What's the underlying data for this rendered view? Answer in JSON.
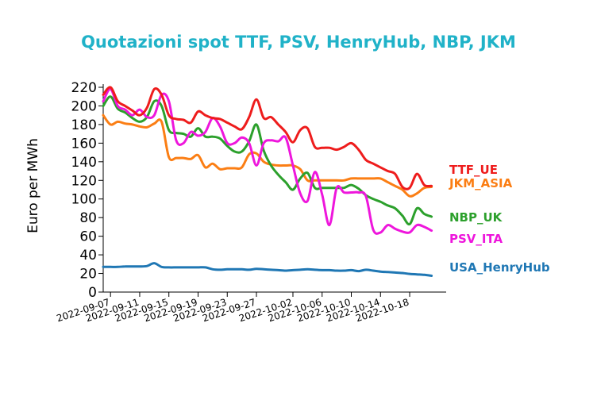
{
  "chart_data": {
    "type": "line",
    "title": "Quotazioni spot TTF, PSV, HenryHub, NBP, JKM",
    "title_color": "#20b2c8",
    "xlabel": "",
    "ylabel": "Euro per MWh",
    "ylim": [
      0,
      220
    ],
    "yticks": [
      0,
      20,
      40,
      60,
      80,
      100,
      120,
      140,
      160,
      180,
      200,
      220
    ],
    "x_range": [
      "2022-09-06",
      "2022-10-23"
    ],
    "xticks": [
      "2022-09-07",
      "2022-09-11",
      "2022-09-15",
      "2022-09-19",
      "2022-09-23",
      "2022-09-27",
      "2022-10-02",
      "2022-10-06",
      "2022-10-10",
      "2022-10-14",
      "2022-10-18"
    ],
    "grid": false,
    "legend": "inline labels at right end of lines",
    "series": [
      {
        "name": "TTF_UE",
        "color": "#ee1c1c",
        "x": [
          "2022-09-06",
          "2022-09-07",
          "2022-09-08",
          "2022-09-09",
          "2022-09-10",
          "2022-09-11",
          "2022-09-12",
          "2022-09-13",
          "2022-09-14",
          "2022-09-15",
          "2022-09-16",
          "2022-09-17",
          "2022-09-18",
          "2022-09-19",
          "2022-09-20",
          "2022-09-21",
          "2022-09-22",
          "2022-09-23",
          "2022-09-24",
          "2022-09-25",
          "2022-09-26",
          "2022-09-27",
          "2022-09-28",
          "2022-09-29",
          "2022-09-30",
          "2022-10-01",
          "2022-10-02",
          "2022-10-03",
          "2022-10-04",
          "2022-10-05",
          "2022-10-06",
          "2022-10-07",
          "2022-10-08",
          "2022-10-09",
          "2022-10-10",
          "2022-10-11",
          "2022-10-12",
          "2022-10-13",
          "2022-10-14",
          "2022-10-15",
          "2022-10-16",
          "2022-10-17",
          "2022-10-18",
          "2022-10-19",
          "2022-10-20",
          "2022-10-21"
        ],
        "values": [
          212,
          220,
          205,
          200,
          195,
          190,
          198,
          218,
          212,
          190,
          186,
          185,
          182,
          194,
          190,
          187,
          186,
          182,
          178,
          175,
          188,
          207,
          187,
          188,
          180,
          172,
          161,
          174,
          176,
          156,
          155,
          155,
          153,
          156,
          160,
          153,
          142,
          138,
          134,
          130,
          127,
          113,
          112,
          127,
          115,
          114
        ]
      },
      {
        "name": "JKM_ASIA",
        "color": "#fb7e14",
        "x": [
          "2022-09-06",
          "2022-09-07",
          "2022-09-08",
          "2022-09-09",
          "2022-09-10",
          "2022-09-11",
          "2022-09-12",
          "2022-09-13",
          "2022-09-14",
          "2022-09-15",
          "2022-09-16",
          "2022-09-17",
          "2022-09-18",
          "2022-09-19",
          "2022-09-20",
          "2022-09-21",
          "2022-09-22",
          "2022-09-23",
          "2022-09-24",
          "2022-09-25",
          "2022-09-26",
          "2022-09-27",
          "2022-09-28",
          "2022-09-29",
          "2022-09-30",
          "2022-10-01",
          "2022-10-02",
          "2022-10-03",
          "2022-10-04",
          "2022-10-05",
          "2022-10-06",
          "2022-10-07",
          "2022-10-08",
          "2022-10-09",
          "2022-10-10",
          "2022-10-11",
          "2022-10-12",
          "2022-10-13",
          "2022-10-14",
          "2022-10-15",
          "2022-10-16",
          "2022-10-17",
          "2022-10-18",
          "2022-10-19",
          "2022-10-20",
          "2022-10-21"
        ],
        "values": [
          190,
          180,
          183,
          181,
          180,
          178,
          177,
          181,
          183,
          145,
          144,
          144,
          143,
          147,
          134,
          138,
          132,
          133,
          133,
          134,
          148,
          149,
          140,
          137,
          136,
          136,
          136,
          132,
          120,
          120,
          120,
          120,
          120,
          120,
          122,
          122,
          122,
          122,
          122,
          118,
          114,
          110,
          103,
          106,
          112,
          113
        ]
      },
      {
        "name": "NBP_UK",
        "color": "#2ca02c",
        "x": [
          "2022-09-06",
          "2022-09-07",
          "2022-09-08",
          "2022-09-09",
          "2022-09-10",
          "2022-09-11",
          "2022-09-12",
          "2022-09-13",
          "2022-09-14",
          "2022-09-15",
          "2022-09-16",
          "2022-09-17",
          "2022-09-18",
          "2022-09-19",
          "2022-09-20",
          "2022-09-21",
          "2022-09-22",
          "2022-09-23",
          "2022-09-24",
          "2022-09-25",
          "2022-09-26",
          "2022-09-27",
          "2022-09-28",
          "2022-09-29",
          "2022-09-30",
          "2022-10-01",
          "2022-10-02",
          "2022-10-03",
          "2022-10-04",
          "2022-10-05",
          "2022-10-06",
          "2022-10-07",
          "2022-10-08",
          "2022-10-09",
          "2022-10-10",
          "2022-10-11",
          "2022-10-12",
          "2022-10-13",
          "2022-10-14",
          "2022-10-15",
          "2022-10-16",
          "2022-10-17",
          "2022-10-18",
          "2022-10-19",
          "2022-10-20",
          "2022-10-21"
        ],
        "values": [
          200,
          210,
          197,
          193,
          187,
          183,
          188,
          205,
          200,
          174,
          171,
          170,
          167,
          176,
          167,
          167,
          165,
          157,
          151,
          151,
          162,
          180,
          152,
          136,
          126,
          118,
          110,
          122,
          128,
          112,
          112,
          112,
          112,
          112,
          115,
          111,
          104,
          100,
          97,
          93,
          90,
          82,
          73,
          90,
          84,
          81
        ]
      },
      {
        "name": "PSV_ITA",
        "color": "#ee16dc",
        "x": [
          "2022-09-06",
          "2022-09-07",
          "2022-09-08",
          "2022-09-09",
          "2022-09-10",
          "2022-09-11",
          "2022-09-12",
          "2022-09-13",
          "2022-09-14",
          "2022-09-15",
          "2022-09-16",
          "2022-09-17",
          "2022-09-18",
          "2022-09-19",
          "2022-09-20",
          "2022-09-21",
          "2022-09-22",
          "2022-09-23",
          "2022-09-24",
          "2022-09-25",
          "2022-09-26",
          "2022-09-27",
          "2022-09-28",
          "2022-09-29",
          "2022-09-30",
          "2022-10-01",
          "2022-10-02",
          "2022-10-03",
          "2022-10-04",
          "2022-10-05",
          "2022-10-06",
          "2022-10-07",
          "2022-10-08",
          "2022-10-09",
          "2022-10-10",
          "2022-10-11",
          "2022-10-12",
          "2022-10-13",
          "2022-10-14",
          "2022-10-15",
          "2022-10-16",
          "2022-10-17",
          "2022-10-18",
          "2022-10-19",
          "2022-10-20",
          "2022-10-21"
        ],
        "values": [
          205,
          218,
          200,
          196,
          190,
          196,
          188,
          190,
          212,
          205,
          163,
          160,
          172,
          168,
          172,
          187,
          178,
          160,
          160,
          166,
          160,
          136,
          160,
          163,
          162,
          166,
          136,
          106,
          98,
          129,
          105,
          72,
          112,
          107,
          107,
          107,
          103,
          67,
          64,
          72,
          68,
          65,
          64,
          72,
          70,
          66
        ]
      },
      {
        "name": "USA_HenryHub",
        "color": "#1f77b4",
        "x": [
          "2022-09-06",
          "2022-09-07",
          "2022-09-08",
          "2022-09-09",
          "2022-09-10",
          "2022-09-11",
          "2022-09-12",
          "2022-09-13",
          "2022-09-14",
          "2022-09-15",
          "2022-09-16",
          "2022-09-17",
          "2022-09-18",
          "2022-09-19",
          "2022-09-20",
          "2022-09-21",
          "2022-09-22",
          "2022-09-23",
          "2022-09-24",
          "2022-09-25",
          "2022-09-26",
          "2022-09-27",
          "2022-09-28",
          "2022-09-29",
          "2022-09-30",
          "2022-10-01",
          "2022-10-02",
          "2022-10-03",
          "2022-10-04",
          "2022-10-05",
          "2022-10-06",
          "2022-10-07",
          "2022-10-08",
          "2022-10-09",
          "2022-10-10",
          "2022-10-11",
          "2022-10-12",
          "2022-10-13",
          "2022-10-14",
          "2022-10-15",
          "2022-10-16",
          "2022-10-17",
          "2022-10-18",
          "2022-10-19",
          "2022-10-20",
          "2022-10-21"
        ],
        "values": [
          27,
          27,
          27,
          27.5,
          27.5,
          27.5,
          28,
          31,
          27,
          26.5,
          26.5,
          26.5,
          26.5,
          26.5,
          26.5,
          24.5,
          24,
          24.5,
          24.5,
          24.5,
          24,
          25,
          24.5,
          24,
          23.5,
          23,
          23.5,
          24,
          24.5,
          24,
          23.5,
          23.5,
          23,
          23,
          23.5,
          22.5,
          24,
          23,
          22,
          21.5,
          21,
          20.5,
          19.5,
          19,
          18.5,
          17.5
        ]
      }
    ]
  }
}
